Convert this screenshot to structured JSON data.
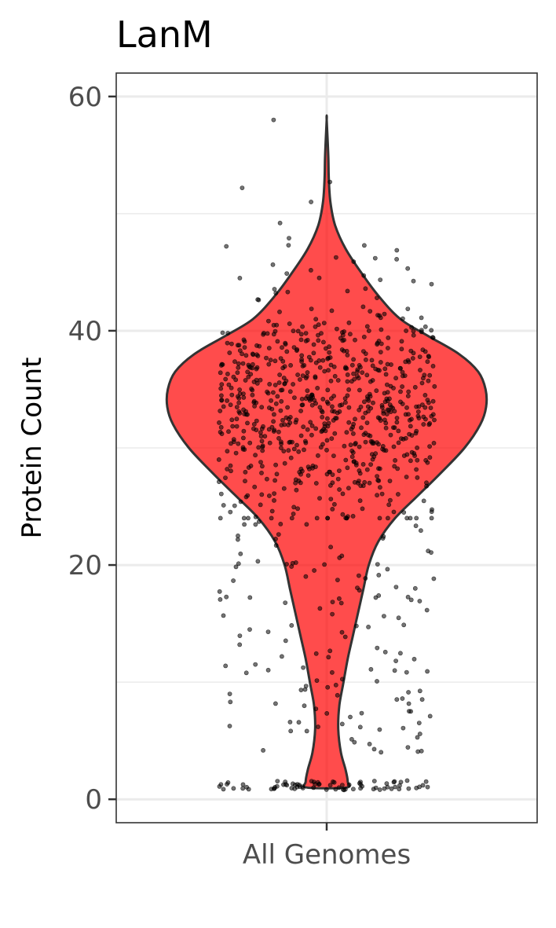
{
  "chart_data": {
    "type": "violin",
    "title": "LanM",
    "xlabel": "",
    "ylabel": "Protein Count",
    "categories": [
      "All Genomes"
    ],
    "ylim": [
      -2,
      62
    ],
    "yticks": [
      0,
      20,
      40,
      60
    ],
    "grid": true,
    "legend": "none",
    "fill_color": "#ff0000",
    "fill_opacity": 0.7,
    "outline_color": "#333333",
    "point_color": "#000000",
    "density_profile": [
      {
        "y": 1,
        "width": 0.37
      },
      {
        "y": 1.5,
        "width": 0.4
      },
      {
        "y": 2.5,
        "width": 0.36
      },
      {
        "y": 4,
        "width": 0.27
      },
      {
        "y": 6,
        "width": 0.22
      },
      {
        "y": 8,
        "width": 0.24
      },
      {
        "y": 10,
        "width": 0.32
      },
      {
        "y": 12,
        "width": 0.4
      },
      {
        "y": 14,
        "width": 0.5
      },
      {
        "y": 16,
        "width": 0.6
      },
      {
        "y": 18,
        "width": 0.7
      },
      {
        "y": 20,
        "width": 0.8
      },
      {
        "y": 22,
        "width": 0.98
      },
      {
        "y": 24,
        "width": 1.3
      },
      {
        "y": 26,
        "width": 1.75
      },
      {
        "y": 28,
        "width": 2.2
      },
      {
        "y": 30,
        "width": 2.62
      },
      {
        "y": 32,
        "width": 2.92
      },
      {
        "y": 33.5,
        "width": 3.03
      },
      {
        "y": 35,
        "width": 3.02
      },
      {
        "y": 36.5,
        "width": 2.88
      },
      {
        "y": 38,
        "width": 2.52
      },
      {
        "y": 39.5,
        "width": 1.95
      },
      {
        "y": 41,
        "width": 1.4
      },
      {
        "y": 43,
        "width": 0.98
      },
      {
        "y": 45,
        "width": 0.65
      },
      {
        "y": 47,
        "width": 0.36
      },
      {
        "y": 49,
        "width": 0.16
      },
      {
        "y": 51,
        "width": 0.07
      },
      {
        "y": 53,
        "width": 0.04
      },
      {
        "y": 55,
        "width": 0.03
      },
      {
        "y": 58,
        "width": 0.0
      }
    ]
  }
}
